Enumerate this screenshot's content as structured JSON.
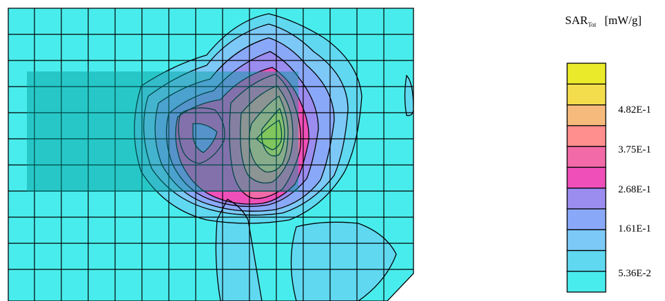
{
  "chart_data": {
    "type": "heatmap",
    "title": "",
    "legend": {
      "title_main": "SAR",
      "title_sub": "Tot",
      "unit": "[mW/g]",
      "placement": "right",
      "levels": [
        {
          "color": "#49ecec"
        },
        {
          "color": "#5fd8f0"
        },
        {
          "color": "#7cc8f7"
        },
        {
          "color": "#8aa8f8"
        },
        {
          "color": "#9b8cf0"
        },
        {
          "color": "#ef4fb8"
        },
        {
          "color": "#f26aa8"
        },
        {
          "color": "#ff8e8e"
        },
        {
          "color": "#f6bb7c"
        },
        {
          "color": "#f4dd4c"
        },
        {
          "color": "#eaea2a"
        }
      ],
      "tick_labels": [
        "5.36E-2",
        "1.61E-1",
        "2.68E-1",
        "3.75E-1",
        "4.82E-1"
      ]
    },
    "grid": true,
    "overlay_rect": {
      "color": "#009b9b",
      "opacity": 0.45
    }
  }
}
